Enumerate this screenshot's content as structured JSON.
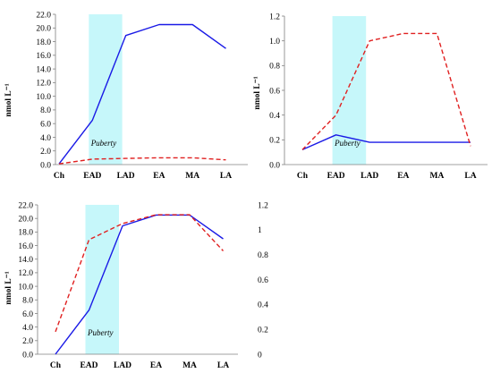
{
  "chart_data": [
    {
      "type": "line",
      "categories": [
        "Ch",
        "EAD",
        "LAD",
        "EA",
        "MA",
        "LA"
      ],
      "ylabel": "nmol L⁻¹",
      "ylim": [
        0,
        22
      ],
      "yticks": [
        "0.0",
        "2.0",
        "4.0",
        "6.0",
        "8.0",
        "10.0",
        "12.0",
        "14.0",
        "16.0",
        "18.0",
        "20.0",
        "22.0"
      ],
      "grid": false,
      "shaded_region": {
        "label": "Puberty",
        "from": "EAD",
        "to": "LAD",
        "color": "#c6f7fa"
      },
      "series": [
        {
          "style": "solid",
          "color": "#1a1ae6",
          "values": [
            0.1,
            6.5,
            18.9,
            20.5,
            20.5,
            17.0
          ]
        },
        {
          "style": "dashed",
          "color": "#e02020",
          "values": [
            0.1,
            0.8,
            0.9,
            1.0,
            1.0,
            0.7
          ]
        }
      ]
    },
    {
      "type": "line",
      "categories": [
        "Ch",
        "EAD",
        "LAD",
        "EA",
        "MA",
        "LA"
      ],
      "ylabel": "nmol L⁻¹",
      "ylim": [
        0,
        1.2
      ],
      "yticks": [
        "0.0",
        "0.2",
        "0.4",
        "0.6",
        "0.8",
        "1.0",
        "1.2"
      ],
      "grid": false,
      "shaded_region": {
        "label": "Puberty",
        "from": "EAD",
        "to": "LAD",
        "color": "#c6f7fa"
      },
      "series": [
        {
          "style": "solid",
          "color": "#1a1ae6",
          "values": [
            0.12,
            0.24,
            0.18,
            0.18,
            0.18,
            0.18
          ]
        },
        {
          "style": "dashed",
          "color": "#e02020",
          "values": [
            0.12,
            0.4,
            1.0,
            1.06,
            1.06,
            0.15
          ]
        }
      ]
    },
    {
      "type": "line",
      "categories": [
        "Ch",
        "EAD",
        "LAD",
        "EA",
        "MA",
        "LA"
      ],
      "ylabel": "nmol L⁻¹",
      "ylim": [
        0,
        22
      ],
      "yticks": [
        "0.0",
        "2.0",
        "4.0",
        "6.0",
        "8.0",
        "10.0",
        "12.0",
        "14.0",
        "16.0",
        "18.0",
        "20.0",
        "22.0"
      ],
      "y2lim": [
        0,
        1.2
      ],
      "y2ticks": [
        "0",
        "0.2",
        "0.4",
        "0.6",
        "0.8",
        "1",
        "1.2"
      ],
      "grid": false,
      "shaded_region": {
        "label": "Puberty",
        "from": "EAD",
        "to": "LAD",
        "color": "#c6f7fa"
      },
      "series": [
        {
          "style": "solid",
          "color": "#1a1ae6",
          "axis": "left",
          "values": [
            0.0,
            6.5,
            18.9,
            20.5,
            20.5,
            17.0
          ]
        },
        {
          "style": "dashed",
          "color": "#e02020",
          "axis": "right",
          "values": [
            0.18,
            0.92,
            1.05,
            1.12,
            1.12,
            0.83
          ]
        }
      ]
    }
  ]
}
